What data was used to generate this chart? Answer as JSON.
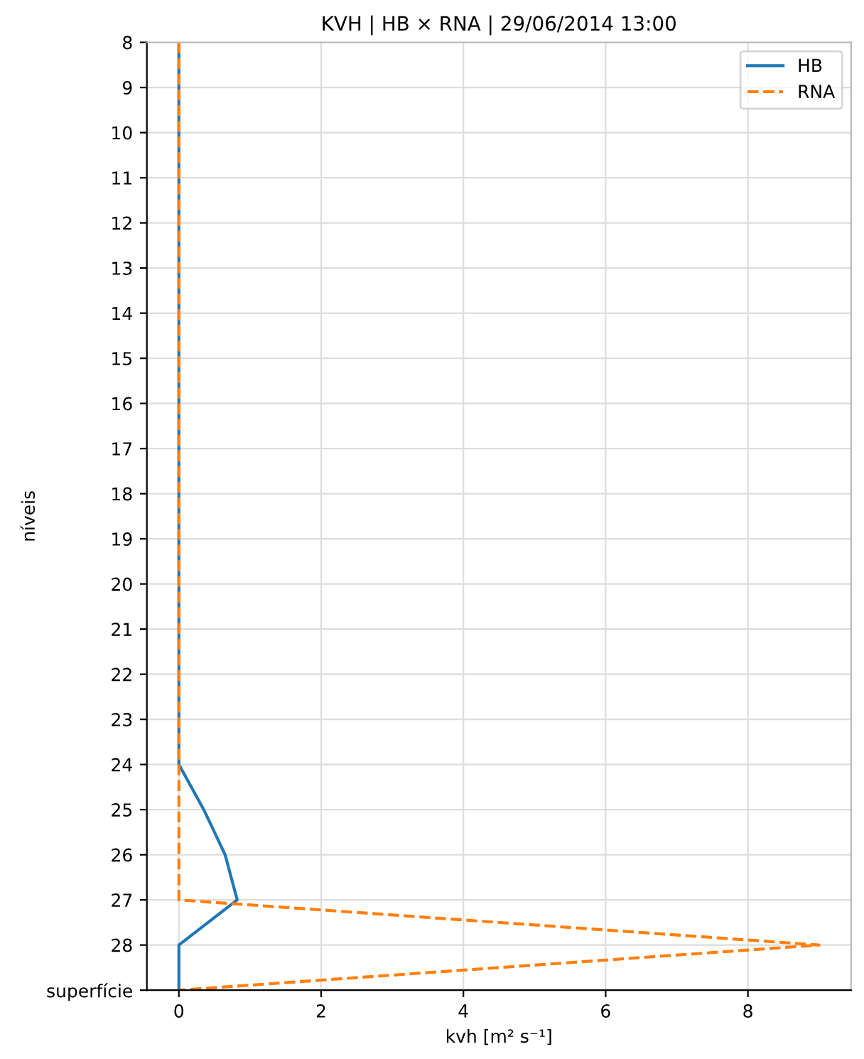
{
  "chart_data": {
    "type": "line",
    "title": "KVH | HB × RNA | 29/06/2014 13:00",
    "xlabel": "kvh [m² s⁻¹]",
    "ylabel": "níveis",
    "orientation": "horizontal",
    "x": [
      8,
      9,
      10,
      11,
      12,
      13,
      14,
      15,
      16,
      17,
      18,
      19,
      20,
      21,
      22,
      23,
      24,
      25,
      26,
      27,
      28,
      29
    ],
    "series": [
      {
        "name": "HB",
        "color": "#1f77b4",
        "line_style": "solid",
        "values": [
          0,
          0,
          0,
          0,
          0,
          0,
          0,
          0,
          0,
          0,
          0,
          0,
          0,
          0,
          0,
          0,
          0,
          0.35,
          0.65,
          0.82,
          0,
          0
        ]
      },
      {
        "name": "RNA",
        "color": "#ff7f0e",
        "line_style": "dashed",
        "values": [
          0,
          0,
          0,
          0,
          0,
          0,
          0,
          0,
          0,
          0,
          0,
          0,
          0,
          0,
          0,
          0,
          0,
          0,
          0,
          0,
          9.0,
          0
        ]
      }
    ],
    "xlim": [
      -0.45,
      9.45
    ],
    "xticks": [
      0,
      2,
      4,
      6,
      8
    ],
    "ylim": [
      29,
      8
    ],
    "yticks": [
      8,
      9,
      10,
      11,
      12,
      13,
      14,
      15,
      16,
      17,
      18,
      19,
      20,
      21,
      22,
      23,
      24,
      25,
      26,
      27,
      28,
      {
        "value": 29,
        "label": "superfície"
      }
    ],
    "grid": true,
    "legend": "top right",
    "marker": "none"
  }
}
